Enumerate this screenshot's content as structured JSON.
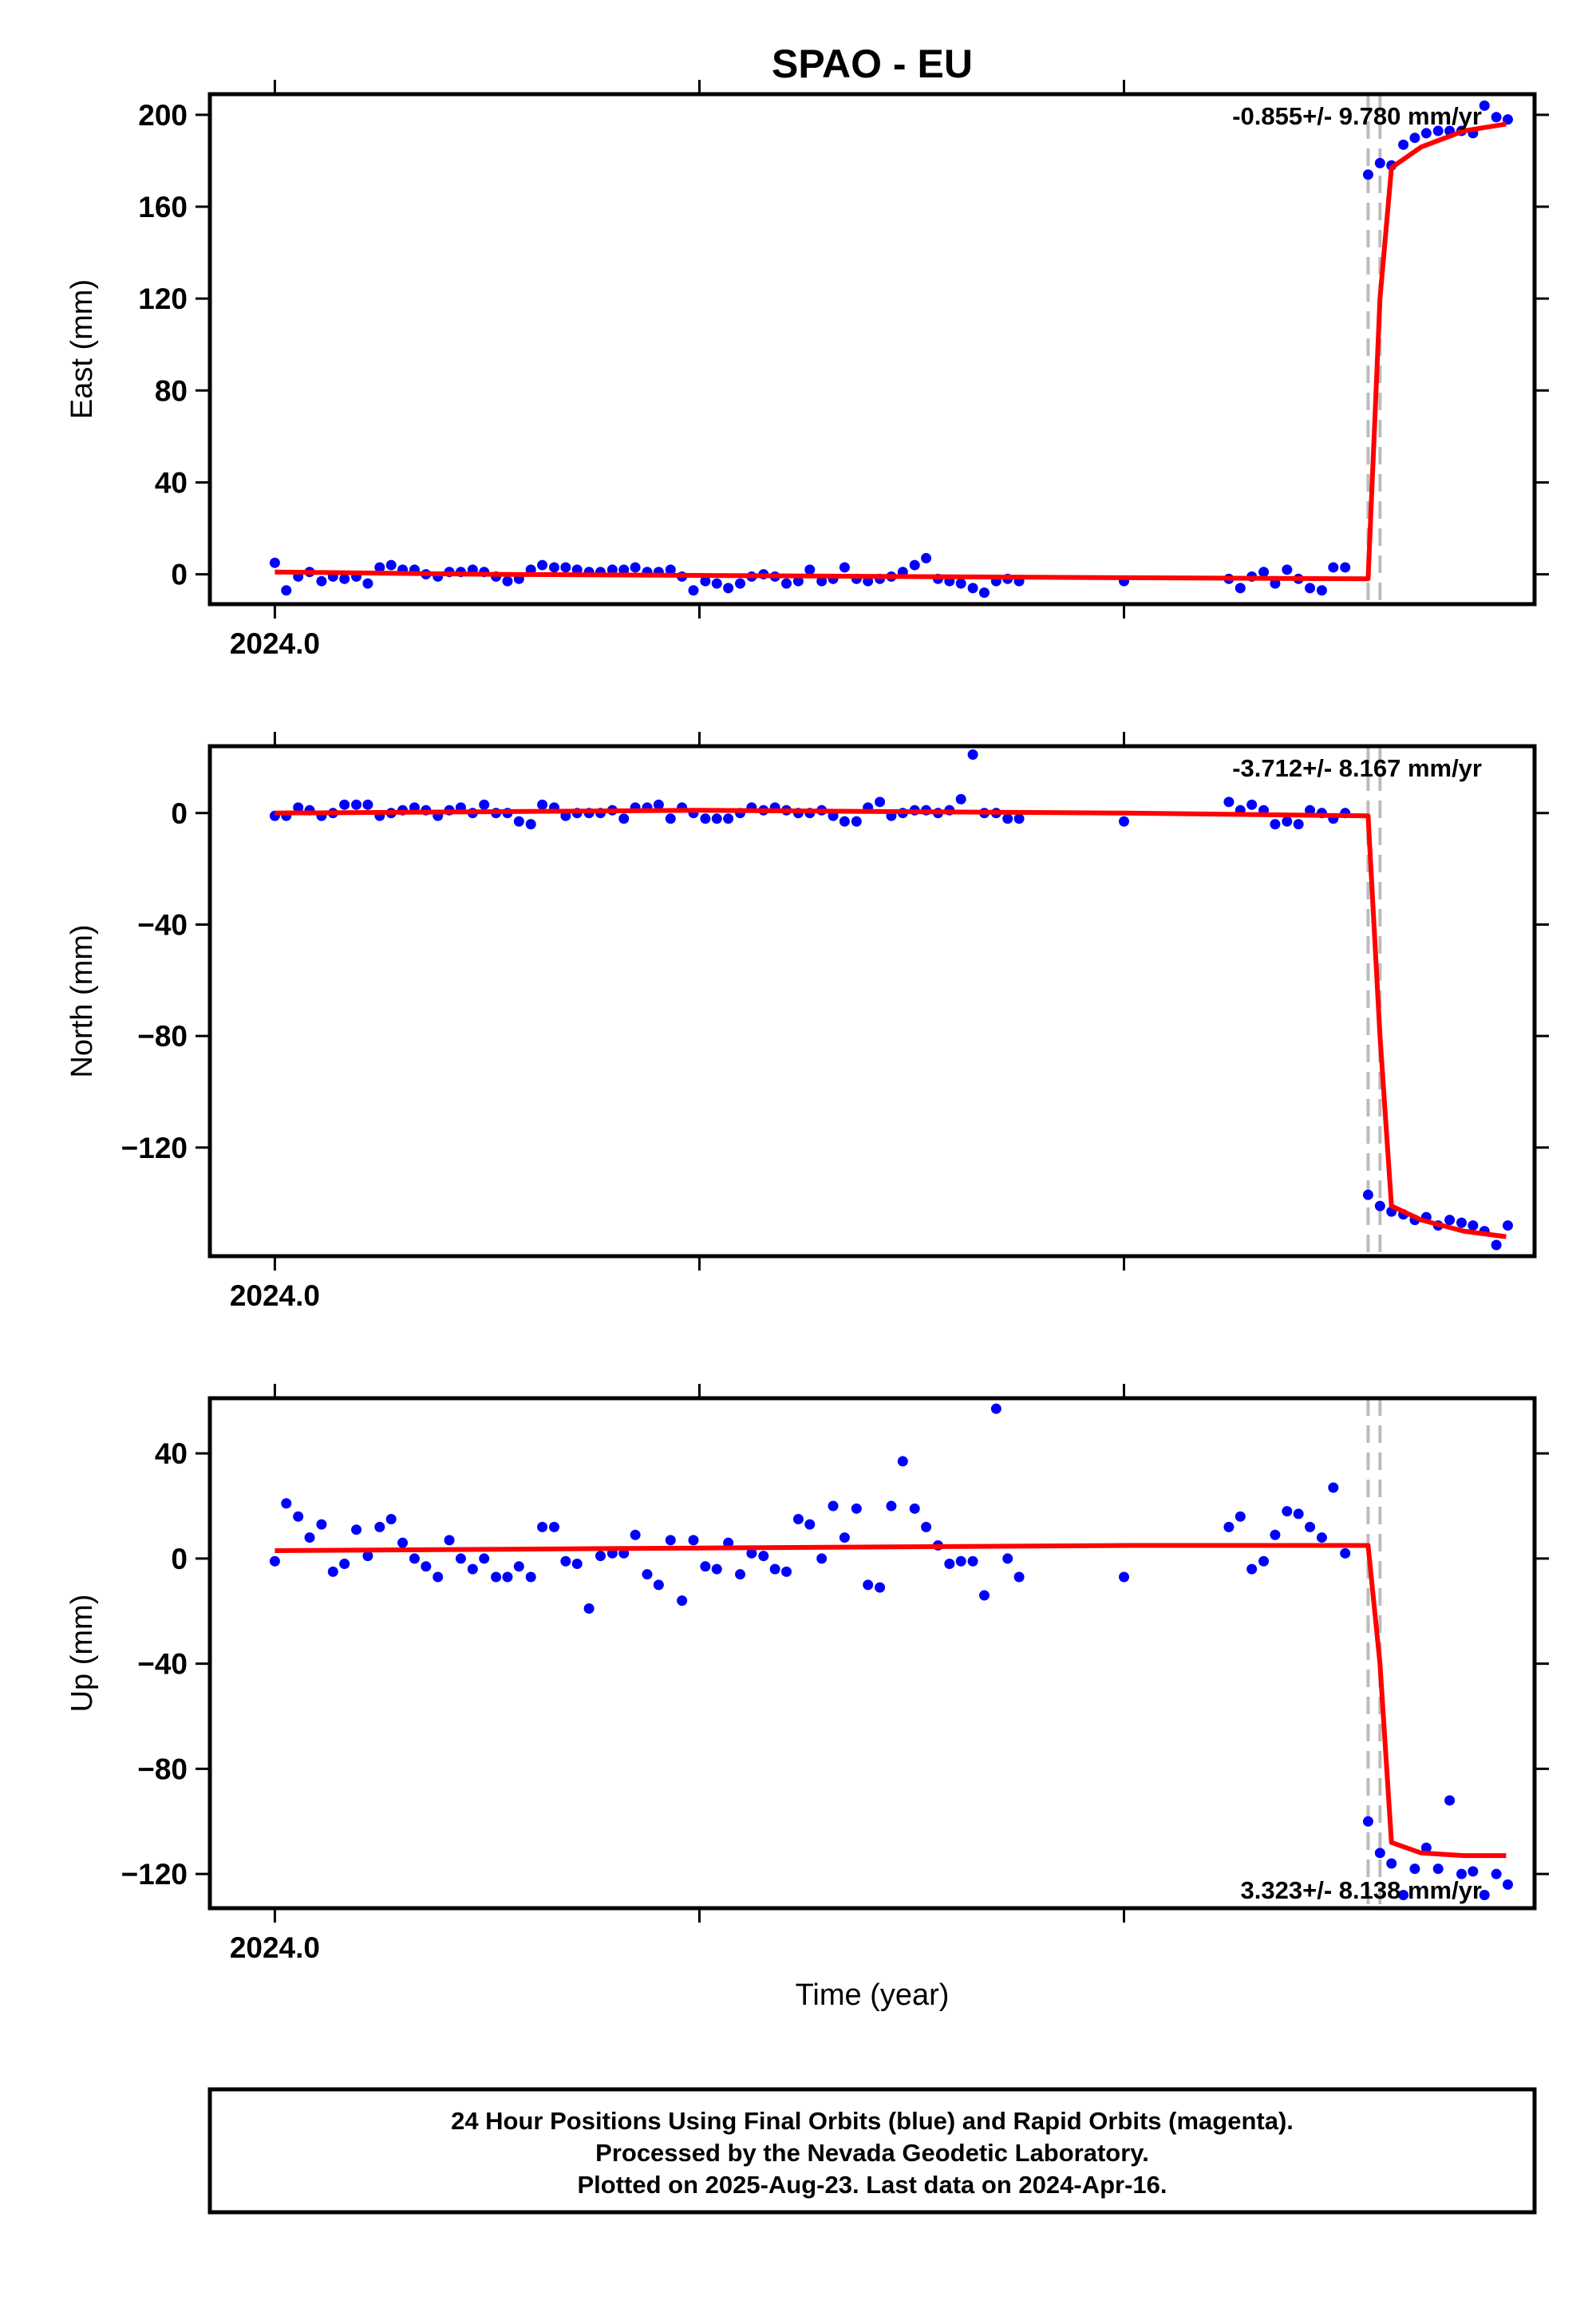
{
  "title": "SPAO - EU",
  "xlabel": "Time (year)",
  "x_tick_label": "2024.0",
  "footer": {
    "line1": "24 Hour Positions Using Final Orbits (blue) and Rapid Orbits (magenta).",
    "line2": "Processed by the Nevada Geodetic Laboratory.",
    "line3": "Plotted on 2025-Aug-23. Last data on 2024-Apr-16."
  },
  "colors": {
    "points": "#0000ff",
    "fit": "#ff0000",
    "break_lines": "#bbbbbb"
  },
  "chart_data": [
    {
      "type": "scatter",
      "ylabel": "East (mm)",
      "rate_text": "-0.855+/- 9.780 mm/yr",
      "rate_position": "top-right",
      "yticks": [
        0,
        40,
        80,
        120,
        160,
        200
      ],
      "ylim": [
        -13,
        209
      ],
      "xlim": [
        2023.9847,
        2024.2967
      ],
      "breaks": [
        2024.2575,
        2024.2603
      ],
      "fit": {
        "x": [
          2024.0,
          2024.05,
          2024.1,
          2024.15,
          2024.2,
          2024.2575,
          2024.2603,
          2024.263,
          2024.27,
          2024.28,
          2024.29
        ],
        "y": [
          1,
          0,
          -0.5,
          -1,
          -1.5,
          -2,
          120,
          177,
          186,
          193,
          196
        ]
      },
      "points": {
        "x": [
          2024.0,
          2024.0027,
          2024.0055,
          2024.0082,
          2024.011,
          2024.0137,
          2024.0164,
          2024.0192,
          2024.0219,
          2024.0247,
          2024.0274,
          2024.0301,
          2024.0329,
          2024.0356,
          2024.0384,
          2024.0411,
          2024.0438,
          2024.0466,
          2024.0493,
          2024.0521,
          2024.0548,
          2024.0575,
          2024.0603,
          2024.063,
          2024.0658,
          2024.0685,
          2024.0712,
          2024.074,
          2024.0767,
          2024.0795,
          2024.0822,
          2024.0849,
          2024.0877,
          2024.0904,
          2024.0932,
          2024.0959,
          2024.0986,
          2024.1014,
          2024.1041,
          2024.1068,
          2024.1096,
          2024.1123,
          2024.1151,
          2024.1178,
          2024.1205,
          2024.1233,
          2024.126,
          2024.1288,
          2024.1315,
          2024.1342,
          2024.137,
          2024.1397,
          2024.1425,
          2024.1452,
          2024.1479,
          2024.1507,
          2024.1534,
          2024.1562,
          2024.1589,
          2024.1616,
          2024.1644,
          2024.1671,
          2024.1699,
          2024.1726,
          2024.1753,
          2024.2,
          2024.2247,
          2024.2274,
          2024.2301,
          2024.2329,
          2024.2356,
          2024.2384,
          2024.2411,
          2024.2438,
          2024.2466,
          2024.2493,
          2024.2521,
          2024.2575,
          2024.2603,
          2024.263,
          2024.2658,
          2024.2685,
          2024.2712,
          2024.274,
          2024.2767,
          2024.2795,
          2024.2822,
          2024.2849,
          2024.2877,
          2024.2904
        ],
        "y": [
          5,
          -7,
          -1,
          1,
          -3,
          -1,
          -2,
          -1,
          -4,
          3,
          4,
          2,
          2,
          0,
          -1,
          1,
          1,
          2,
          1,
          -1,
          -3,
          -2,
          2,
          4,
          3,
          3,
          2,
          1,
          1,
          2,
          2,
          3,
          1,
          1,
          2,
          -1,
          -7,
          -3,
          -4,
          -6,
          -4,
          -1,
          0,
          -1,
          -4,
          -3,
          2,
          -3,
          -2,
          3,
          -2,
          -3,
          -2,
          -1,
          1,
          4,
          7,
          -2,
          -3,
          -4,
          -6,
          -8,
          -3,
          -2,
          -3,
          -3,
          -2,
          -6,
          -1,
          1,
          -4,
          2,
          -2,
          -6,
          -7,
          3,
          3,
          174,
          179,
          178,
          187,
          190,
          192,
          193,
          193,
          193,
          192,
          204,
          199,
          198
        ]
      }
    },
    {
      "type": "scatter",
      "ylabel": "North (mm)",
      "rate_text": "-3.712+/- 8.167 mm/yr",
      "rate_position": "top-right",
      "yticks": [
        -120,
        -80,
        -40,
        0
      ],
      "ylim": [
        -159,
        24
      ],
      "xlim": [
        2023.9847,
        2024.2967
      ],
      "breaks": [
        2024.2575,
        2024.2603
      ],
      "fit": {
        "x": [
          2024.0,
          2024.05,
          2024.1,
          2024.15,
          2024.2,
          2024.2575,
          2024.2603,
          2024.263,
          2024.27,
          2024.28,
          2024.29
        ],
        "y": [
          0,
          0.5,
          1,
          0.5,
          0,
          -1,
          -80,
          -141,
          -146,
          -150,
          -152
        ]
      },
      "points": {
        "x": [
          2024.0,
          2024.0027,
          2024.0055,
          2024.0082,
          2024.011,
          2024.0137,
          2024.0164,
          2024.0192,
          2024.0219,
          2024.0247,
          2024.0274,
          2024.0301,
          2024.0329,
          2024.0356,
          2024.0384,
          2024.0411,
          2024.0438,
          2024.0466,
          2024.0493,
          2024.0521,
          2024.0548,
          2024.0575,
          2024.0603,
          2024.063,
          2024.0658,
          2024.0685,
          2024.0712,
          2024.074,
          2024.0767,
          2024.0795,
          2024.0822,
          2024.0849,
          2024.0877,
          2024.0904,
          2024.0932,
          2024.0959,
          2024.0986,
          2024.1014,
          2024.1041,
          2024.1068,
          2024.1096,
          2024.1123,
          2024.1151,
          2024.1178,
          2024.1205,
          2024.1233,
          2024.126,
          2024.1288,
          2024.1315,
          2024.1342,
          2024.137,
          2024.1397,
          2024.1425,
          2024.1452,
          2024.1479,
          2024.1507,
          2024.1534,
          2024.1562,
          2024.1589,
          2024.1616,
          2024.1644,
          2024.1671,
          2024.1699,
          2024.1726,
          2024.1753,
          2024.2,
          2024.2247,
          2024.2274,
          2024.2301,
          2024.2329,
          2024.2356,
          2024.2384,
          2024.2411,
          2024.2438,
          2024.2466,
          2024.2493,
          2024.2521,
          2024.2575,
          2024.2603,
          2024.263,
          2024.2658,
          2024.2685,
          2024.2712,
          2024.274,
          2024.2767,
          2024.2795,
          2024.2822,
          2024.2849,
          2024.2877,
          2024.2904
        ],
        "y": [
          -1,
          -1,
          2,
          1,
          -1,
          0,
          3,
          3,
          3,
          -1,
          0,
          1,
          2,
          1,
          -1,
          1,
          2,
          0,
          3,
          0,
          0,
          -3,
          -4,
          3,
          2,
          -1,
          0,
          0,
          0,
          1,
          -2,
          2,
          2,
          3,
          -2,
          2,
          0,
          -2,
          -2,
          -2,
          0,
          2,
          1,
          2,
          1,
          0,
          0,
          1,
          -1,
          -3,
          -3,
          2,
          4,
          -1,
          0,
          1,
          1,
          0,
          1,
          5,
          21,
          0,
          0,
          -2,
          -2,
          -3,
          4,
          1,
          3,
          1,
          -4,
          -3,
          -4,
          1,
          0,
          -2,
          0,
          -137,
          -141,
          -143,
          -144,
          -146,
          -145,
          -148,
          -146,
          -147,
          -148,
          -150,
          -155,
          -148
        ]
      }
    },
    {
      "type": "scatter",
      "ylabel": "Up (mm)",
      "rate_text": "3.323+/- 8.138 mm/yr",
      "rate_position": "bottom-right",
      "yticks": [
        -120,
        -80,
        -40,
        0,
        40
      ],
      "ylim": [
        -133,
        61
      ],
      "xlim": [
        2023.9847,
        2024.2967
      ],
      "breaks": [
        2024.2575,
        2024.2603
      ],
      "fit": {
        "x": [
          2024.0,
          2024.05,
          2024.1,
          2024.15,
          2024.2,
          2024.2575,
          2024.2603,
          2024.263,
          2024.27,
          2024.28,
          2024.29
        ],
        "y": [
          3,
          3.5,
          4,
          4.5,
          5,
          5,
          -40,
          -108,
          -112,
          -113,
          -113
        ]
      },
      "points": {
        "x": [
          2024.0,
          2024.0027,
          2024.0055,
          2024.0082,
          2024.011,
          2024.0137,
          2024.0164,
          2024.0192,
          2024.0219,
          2024.0247,
          2024.0274,
          2024.0301,
          2024.0329,
          2024.0356,
          2024.0384,
          2024.0411,
          2024.0438,
          2024.0466,
          2024.0493,
          2024.0521,
          2024.0548,
          2024.0575,
          2024.0603,
          2024.063,
          2024.0658,
          2024.0685,
          2024.0712,
          2024.074,
          2024.0767,
          2024.0795,
          2024.0822,
          2024.0849,
          2024.0877,
          2024.0904,
          2024.0932,
          2024.0959,
          2024.0986,
          2024.1014,
          2024.1041,
          2024.1068,
          2024.1096,
          2024.1123,
          2024.1151,
          2024.1178,
          2024.1205,
          2024.1233,
          2024.126,
          2024.1288,
          2024.1315,
          2024.1342,
          2024.137,
          2024.1397,
          2024.1425,
          2024.1452,
          2024.1479,
          2024.1507,
          2024.1534,
          2024.1562,
          2024.1589,
          2024.1616,
          2024.1644,
          2024.1671,
          2024.1699,
          2024.1726,
          2024.1753,
          2024.2,
          2024.2247,
          2024.2274,
          2024.2301,
          2024.2329,
          2024.2356,
          2024.2384,
          2024.2411,
          2024.2438,
          2024.2466,
          2024.2493,
          2024.2521,
          2024.2575,
          2024.2603,
          2024.263,
          2024.2658,
          2024.2685,
          2024.2712,
          2024.274,
          2024.2767,
          2024.2795,
          2024.2822,
          2024.2849,
          2024.2877,
          2024.2904
        ],
        "y": [
          -1,
          21,
          16,
          8,
          13,
          -5,
          -2,
          11,
          1,
          12,
          15,
          6,
          0,
          -3,
          -7,
          7,
          0,
          -4,
          0,
          -7,
          -7,
          -3,
          -7,
          12,
          12,
          -1,
          -2,
          -19,
          1,
          2,
          2,
          9,
          -6,
          -10,
          7,
          -16,
          7,
          -3,
          -4,
          6,
          -6,
          2,
          1,
          -4,
          -5,
          15,
          13,
          0,
          20,
          8,
          19,
          -10,
          -11,
          20,
          37,
          19,
          12,
          5,
          -2,
          -1,
          -1,
          -14,
          57,
          0,
          -7,
          -7,
          12,
          16,
          -4,
          -1,
          9,
          18,
          17,
          12,
          8,
          27,
          2,
          -100,
          -112,
          -116,
          -128,
          -118,
          -110,
          -118,
          -92,
          -120,
          -119,
          -128,
          -120,
          -124
        ]
      }
    }
  ]
}
